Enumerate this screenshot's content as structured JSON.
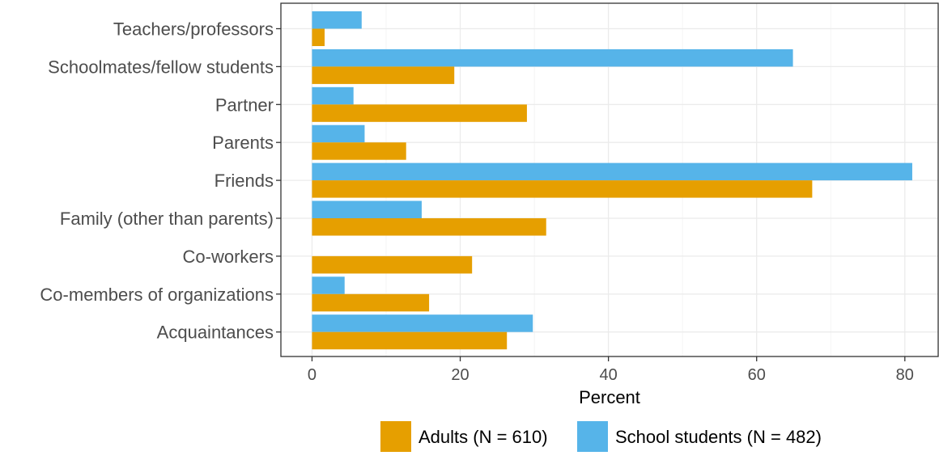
{
  "chart_data": {
    "type": "bar",
    "orientation": "horizontal",
    "categories": [
      "Teachers/professors",
      "Schoolmates/fellow students",
      "Partner",
      "Parents",
      "Friends",
      "Family (other than parents)",
      "Co-workers",
      "Co-members of organizations",
      "Acquaintances"
    ],
    "series": [
      {
        "name": "Adults (N = 610)",
        "color": "#E69F00",
        "values": [
          1.7,
          19.2,
          29.0,
          12.7,
          67.5,
          31.6,
          21.6,
          15.8,
          26.3
        ]
      },
      {
        "name": "School students (N = 482)",
        "color": "#56B4E9",
        "values": [
          6.7,
          64.9,
          5.6,
          7.1,
          81.0,
          14.8,
          0,
          4.4,
          29.8
        ]
      }
    ],
    "xlabel": "Percent",
    "ylabel": "",
    "xlim": [
      -4.2,
      84.5
    ],
    "xticks": [
      0,
      20,
      40,
      60,
      80
    ],
    "grid": true,
    "legend_position": "bottom"
  }
}
